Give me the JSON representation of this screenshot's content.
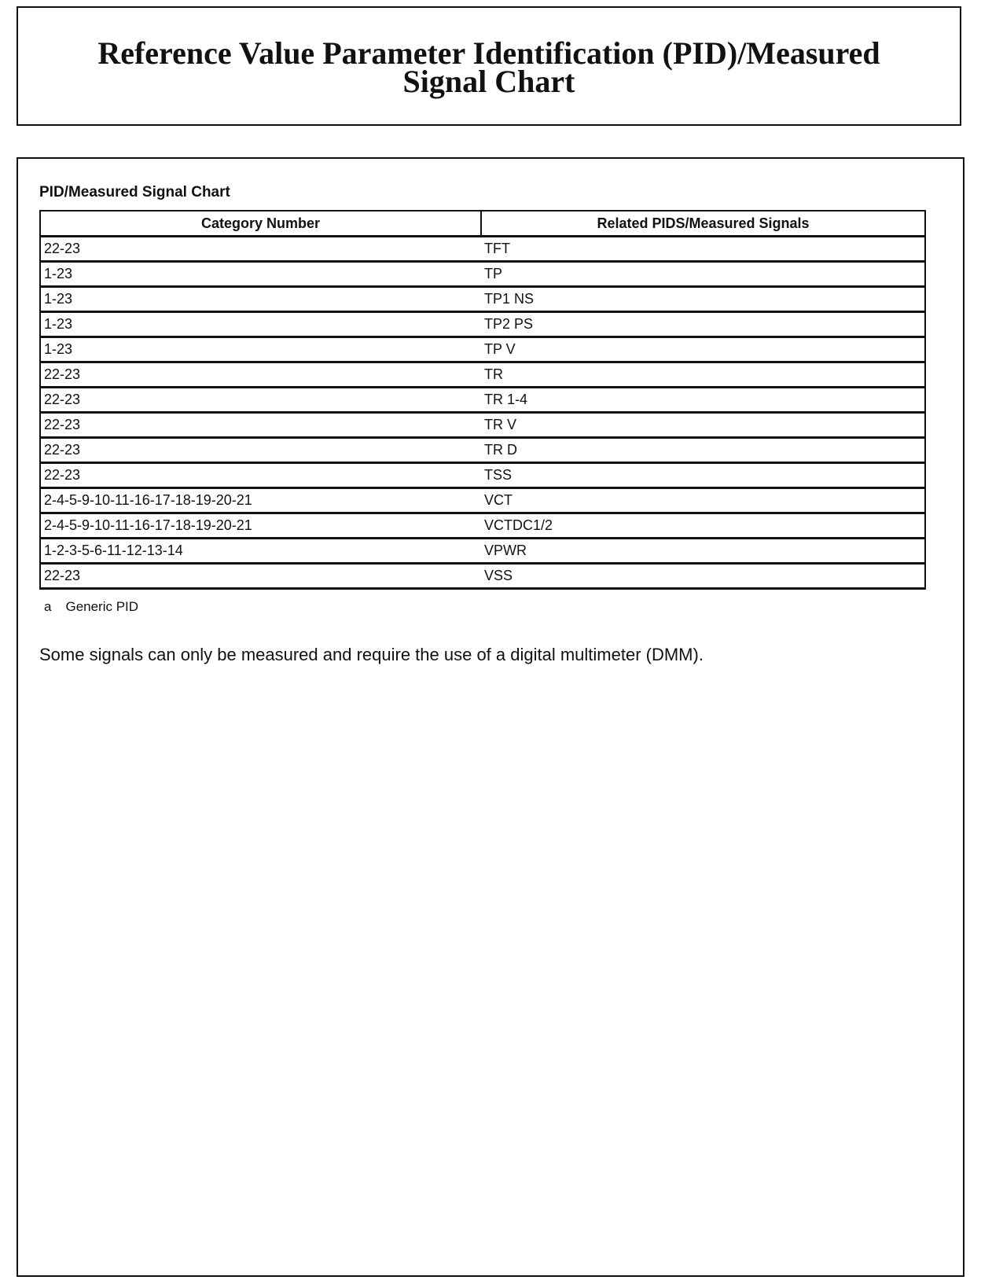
{
  "header": {
    "title_line1": "Reference Value Parameter Identification (PID)/Measured",
    "title_line2": "Signal Chart"
  },
  "table": {
    "title": "PID/Measured Signal Chart",
    "columns": [
      "Category Number",
      "Related PIDS/Measured Signals"
    ],
    "rows": [
      [
        "22-23",
        "TFT"
      ],
      [
        "1-23",
        "TP"
      ],
      [
        "1-23",
        "TP1 NS"
      ],
      [
        "1-23",
        "TP2 PS"
      ],
      [
        "1-23",
        "TP V"
      ],
      [
        "22-23",
        "TR"
      ],
      [
        "22-23",
        "TR 1-4"
      ],
      [
        "22-23",
        "TR V"
      ],
      [
        "22-23",
        "TR D"
      ],
      [
        "22-23",
        "TSS"
      ],
      [
        "2-4-5-9-10-11-16-17-18-19-20-21",
        "VCT"
      ],
      [
        "2-4-5-9-10-11-16-17-18-19-20-21",
        "VCTDC1/2"
      ],
      [
        "1-2-3-5-6-11-12-13-14",
        "VPWR"
      ],
      [
        "22-23",
        "VSS"
      ]
    ],
    "footnote": {
      "mark": "a",
      "text": "Generic PID"
    }
  },
  "note": "Some signals can only be measured and require the use of a digital multimeter (DMM)."
}
